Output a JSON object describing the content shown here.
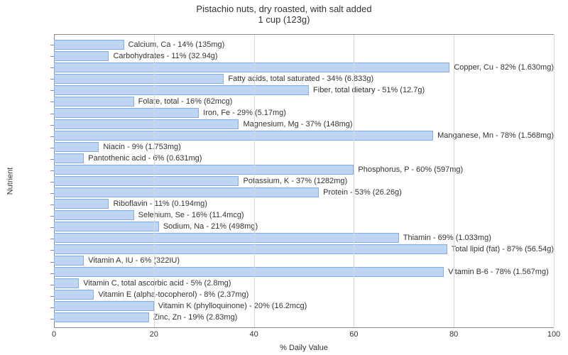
{
  "chart": {
    "type": "bar-horizontal",
    "title_line1": "Pistachio nuts, dry roasted, with salt added",
    "title_line2": "1 cup (123g)",
    "title_fontsize": 13,
    "title_color": "#333333",
    "x_axis": {
      "label": "% Daily Value",
      "min": 0,
      "max": 100,
      "ticks": [
        0,
        20,
        40,
        60,
        80,
        100
      ],
      "font_size": 11,
      "label_color": "#333333",
      "grid_color": "#d8d8d8"
    },
    "y_axis": {
      "label": "Nutrient",
      "font_size": 11,
      "label_color": "#333333"
    },
    "bar_fill": "#bed6f3",
    "bar_border": "#87aee0",
    "bar_label_fontsize": 11,
    "bar_label_color": "#333333",
    "background": "#ffffff",
    "nutrients": [
      {
        "label": "Calcium, Ca - 14% (135mg)",
        "value": 14
      },
      {
        "label": "Carbohydrates - 11% (32.94g)",
        "value": 11
      },
      {
        "label": "Copper, Cu - 82% (1.630mg)",
        "value": 82
      },
      {
        "label": "Fatty acids, total saturated - 34% (6.833g)",
        "value": 34
      },
      {
        "label": "Fiber, total dietary - 51% (12.7g)",
        "value": 51
      },
      {
        "label": "Folate, total - 16% (62mcg)",
        "value": 16
      },
      {
        "label": "Iron, Fe - 29% (5.17mg)",
        "value": 29
      },
      {
        "label": "Magnesium, Mg - 37% (148mg)",
        "value": 37
      },
      {
        "label": "Manganese, Mn - 78% (1.568mg)",
        "value": 78
      },
      {
        "label": "Niacin - 9% (1.753mg)",
        "value": 9
      },
      {
        "label": "Pantothenic acid - 6% (0.631mg)",
        "value": 6
      },
      {
        "label": "Phosphorus, P - 60% (597mg)",
        "value": 60
      },
      {
        "label": "Potassium, K - 37% (1282mg)",
        "value": 37
      },
      {
        "label": "Protein - 53% (26.26g)",
        "value": 53
      },
      {
        "label": "Riboflavin - 11% (0.194mg)",
        "value": 11
      },
      {
        "label": "Selenium, Se - 16% (11.4mcg)",
        "value": 16
      },
      {
        "label": "Sodium, Na - 21% (498mg)",
        "value": 21
      },
      {
        "label": "Thiamin - 69% (1.033mg)",
        "value": 69
      },
      {
        "label": "Total lipid (fat) - 87% (56.54g)",
        "value": 87
      },
      {
        "label": "Vitamin A, IU - 6% (322IU)",
        "value": 6
      },
      {
        "label": "Vitamin B-6 - 78% (1.567mg)",
        "value": 78
      },
      {
        "label": "Vitamin C, total ascorbic acid - 5% (2.8mg)",
        "value": 5
      },
      {
        "label": "Vitamin E (alpha-tocopherol) - 8% (2.37mg)",
        "value": 8
      },
      {
        "label": "Vitamin K (phylloquinone) - 20% (16.2mcg)",
        "value": 20
      },
      {
        "label": "Zinc, Zn - 19% (2.83mg)",
        "value": 19
      }
    ]
  }
}
